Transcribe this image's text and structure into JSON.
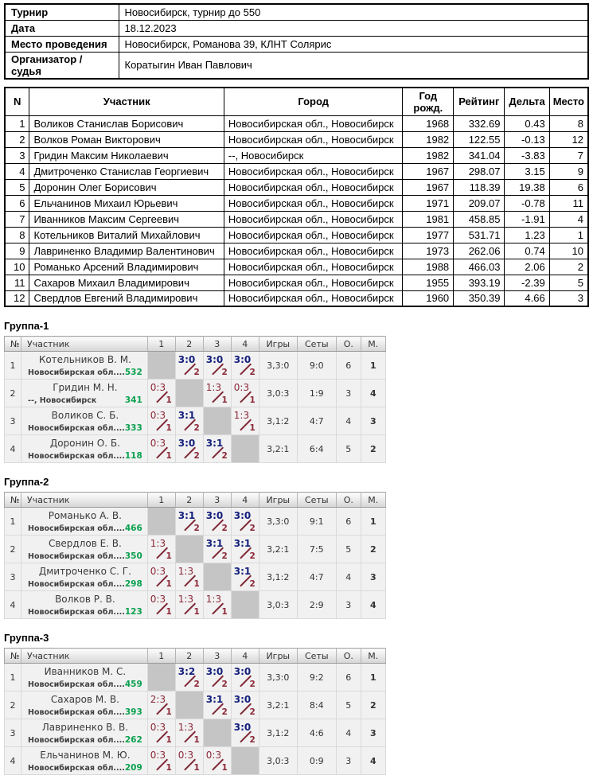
{
  "info": {
    "rows": [
      {
        "label": "Турнир",
        "value": "Новосибирск, турнир до 550"
      },
      {
        "label": "Дата",
        "value": "18.12.2023"
      },
      {
        "label": "Место проведения",
        "value": "Новосибирск, Романова 39, КЛНТ Солярис"
      },
      {
        "label": "Организатор / судья",
        "value": "Коратыгин Иван Павлович"
      }
    ]
  },
  "participants": {
    "headers": [
      "N",
      "Участник",
      "Город",
      "Год рожд.",
      "Рейтинг",
      "Дельта",
      "Место"
    ],
    "rows": [
      [
        "1",
        "Воликов Станислав Борисович",
        "Новосибирская обл., Новосибирск",
        "1968",
        "332.69",
        "0.43",
        "8"
      ],
      [
        "2",
        "Волков Роман Викторович",
        "Новосибирская обл., Новосибирск",
        "1982",
        "122.55",
        "-0.13",
        "12"
      ],
      [
        "3",
        "Гридин Максим Николаевич",
        "--, Новосибирск",
        "1982",
        "341.04",
        "-3.83",
        "7"
      ],
      [
        "4",
        "Дмитроченко Станислав Георгиевич",
        "Новосибирская обл., Новосибирск",
        "1967",
        "298.07",
        "3.15",
        "9"
      ],
      [
        "5",
        "Доронин Олег Борисович",
        "Новосибирская обл., Новосибирск",
        "1967",
        "118.39",
        "19.38",
        "6"
      ],
      [
        "6",
        "Ельчанинов Михаил Юрьевич",
        "Новосибирская обл., Новосибирск",
        "1971",
        "209.07",
        "-0.78",
        "11"
      ],
      [
        "7",
        "Иванников Максим Сергеевич",
        "Новосибирская обл., Новосибирск",
        "1981",
        "458.85",
        "-1.91",
        "4"
      ],
      [
        "8",
        "Котельников Виталий Михайлович",
        "Новосибирская обл., Новосибирск",
        "1977",
        "531.71",
        "1.23",
        "1"
      ],
      [
        "9",
        "Лавриненко Владимир Валентинович",
        "Новосибирская обл., Новосибирск",
        "1973",
        "262.06",
        "0.74",
        "10"
      ],
      [
        "10",
        "Романько Арсений Владимирович",
        "Новосибирская обл., Новосибирск",
        "1988",
        "466.03",
        "2.06",
        "2"
      ],
      [
        "11",
        "Сахаров Михаил Владимирович",
        "Новосибирская обл., Новосибирск",
        "1955",
        "393.19",
        "-2.39",
        "5"
      ],
      [
        "12",
        "Свердлов Евгений Владимирович",
        "Новосибирская обл., Новосибирск",
        "1960",
        "350.39",
        "4.66",
        "3"
      ]
    ]
  },
  "group_headers": [
    "№",
    "Участник",
    "1",
    "2",
    "3",
    "4",
    "Игры",
    "Сеты",
    "О.",
    "М."
  ],
  "groups": [
    {
      "title": "Группа-1",
      "headers": [
        "№",
        "Участник",
        "1",
        "2",
        "3",
        "4",
        "Игры",
        "Сеты",
        "О.",
        "М."
      ],
      "rows": [
        {
          "num": "1",
          "name": "Котельников В. М.",
          "region": "Новосибирская обл....",
          "rating": "532",
          "cells": [
            {
              "self": true
            },
            {
              "score": "3:0",
              "win": true,
              "pts": "2"
            },
            {
              "score": "3:0",
              "win": true,
              "pts": "2"
            },
            {
              "score": "3:0",
              "win": true,
              "pts": "2"
            }
          ],
          "games": "3,3:0",
          "sets": "9:0",
          "points": "6",
          "place": "1"
        },
        {
          "num": "2",
          "name": "Гридин М. Н.",
          "region": "--, Новосибирск",
          "rating": "341",
          "cells": [
            {
              "score": "0:3",
              "win": false,
              "pts": "1"
            },
            {
              "self": true
            },
            {
              "score": "1:3",
              "win": false,
              "pts": "1"
            },
            {
              "score": "0:3",
              "win": false,
              "pts": "1"
            }
          ],
          "games": "3,0:3",
          "sets": "1:9",
          "points": "3",
          "place": "4"
        },
        {
          "num": "3",
          "name": "Воликов С. Б.",
          "region": "Новосибирская обл....",
          "rating": "333",
          "cells": [
            {
              "score": "0:3",
              "win": false,
              "pts": "1"
            },
            {
              "score": "3:1",
              "win": true,
              "pts": "2"
            },
            {
              "self": true
            },
            {
              "score": "1:3",
              "win": false,
              "pts": "1"
            }
          ],
          "games": "3,1:2",
          "sets": "4:7",
          "points": "4",
          "place": "3"
        },
        {
          "num": "4",
          "name": "Доронин О. Б.",
          "region": "Новосибирская обл....",
          "rating": "118",
          "cells": [
            {
              "score": "0:3",
              "win": false,
              "pts": "1"
            },
            {
              "score": "3:0",
              "win": true,
              "pts": "2"
            },
            {
              "score": "3:1",
              "win": true,
              "pts": "2"
            },
            {
              "self": true
            }
          ],
          "games": "3,2:1",
          "sets": "6:4",
          "points": "5",
          "place": "2"
        }
      ]
    },
    {
      "title": "Группа-2",
      "headers": [
        "№",
        "Участник",
        "1",
        "2",
        "3",
        "4",
        "Игры",
        "Сеты",
        "О.",
        "М."
      ],
      "rows": [
        {
          "num": "1",
          "name": "Романько А. В.",
          "region": "Новосибирская обл....",
          "rating": "466",
          "cells": [
            {
              "self": true
            },
            {
              "score": "3:1",
              "win": true,
              "pts": "2"
            },
            {
              "score": "3:0",
              "win": true,
              "pts": "2"
            },
            {
              "score": "3:0",
              "win": true,
              "pts": "2"
            }
          ],
          "games": "3,3:0",
          "sets": "9:1",
          "points": "6",
          "place": "1"
        },
        {
          "num": "2",
          "name": "Свердлов Е. В.",
          "region": "Новосибирская обл....",
          "rating": "350",
          "cells": [
            {
              "score": "1:3",
              "win": false,
              "pts": "1"
            },
            {
              "self": true
            },
            {
              "score": "3:1",
              "win": true,
              "pts": "2"
            },
            {
              "score": "3:1",
              "win": true,
              "pts": "2"
            }
          ],
          "games": "3,2:1",
          "sets": "7:5",
          "points": "5",
          "place": "2"
        },
        {
          "num": "3",
          "name": "Дмитроченко С. Г.",
          "region": "Новосибирская обл....",
          "rating": "298",
          "cells": [
            {
              "score": "0:3",
              "win": false,
              "pts": "1"
            },
            {
              "score": "1:3",
              "win": false,
              "pts": "1"
            },
            {
              "self": true
            },
            {
              "score": "3:1",
              "win": true,
              "pts": "2"
            }
          ],
          "games": "3,1:2",
          "sets": "4:7",
          "points": "4",
          "place": "3"
        },
        {
          "num": "4",
          "name": "Волков Р. В.",
          "region": "Новосибирская обл....",
          "rating": "123",
          "cells": [
            {
              "score": "0:3",
              "win": false,
              "pts": "1"
            },
            {
              "score": "1:3",
              "win": false,
              "pts": "1"
            },
            {
              "score": "1:3",
              "win": false,
              "pts": "1"
            },
            {
              "self": true
            }
          ],
          "games": "3,0:3",
          "sets": "2:9",
          "points": "3",
          "place": "4"
        }
      ]
    },
    {
      "title": "Группа-3",
      "headers": [
        "№",
        "Участник",
        "1",
        "2",
        "3",
        "4",
        "Игры",
        "Сеты",
        "О.",
        "М."
      ],
      "rows": [
        {
          "num": "1",
          "name": "Иванников М. С.",
          "region": "Новосибирская обл....",
          "rating": "459",
          "cells": [
            {
              "self": true
            },
            {
              "score": "3:2",
              "win": true,
              "pts": "2"
            },
            {
              "score": "3:0",
              "win": true,
              "pts": "2"
            },
            {
              "score": "3:0",
              "win": true,
              "pts": "2"
            }
          ],
          "games": "3,3:0",
          "sets": "9:2",
          "points": "6",
          "place": "1"
        },
        {
          "num": "2",
          "name": "Сахаров М. В.",
          "region": "Новосибирская обл....",
          "rating": "393",
          "cells": [
            {
              "score": "2:3",
              "win": false,
              "pts": "1"
            },
            {
              "self": true
            },
            {
              "score": "3:1",
              "win": true,
              "pts": "2"
            },
            {
              "score": "3:0",
              "win": true,
              "pts": "2"
            }
          ],
          "games": "3,2:1",
          "sets": "8:4",
          "points": "5",
          "place": "2"
        },
        {
          "num": "3",
          "name": "Лавриненко В. В.",
          "region": "Новосибирская обл....",
          "rating": "262",
          "cells": [
            {
              "score": "0:3",
              "win": false,
              "pts": "1"
            },
            {
              "score": "1:3",
              "win": false,
              "pts": "1"
            },
            {
              "self": true
            },
            {
              "score": "3:0",
              "win": true,
              "pts": "2"
            }
          ],
          "games": "3,1:2",
          "sets": "4:6",
          "points": "4",
          "place": "3"
        },
        {
          "num": "4",
          "name": "Ельчанинов М. Ю.",
          "region": "Новосибирская обл....",
          "rating": "209",
          "cells": [
            {
              "score": "0:3",
              "win": false,
              "pts": "1"
            },
            {
              "score": "0:3",
              "win": false,
              "pts": "1"
            },
            {
              "score": "0:3",
              "win": false,
              "pts": "1"
            },
            {
              "self": true
            }
          ],
          "games": "3,0:3",
          "sets": "0:9",
          "points": "3",
          "place": "4"
        }
      ]
    }
  ],
  "colors": {
    "win_score": "#14207d",
    "loss_score": "#8c2837",
    "rating_green": "#0aa04e",
    "place_navy": "#2b3a9e",
    "self_cell_gray": "#c5c5c5"
  }
}
